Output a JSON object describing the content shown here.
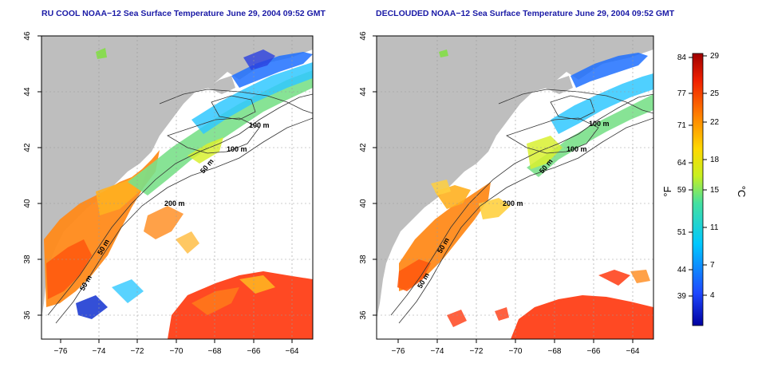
{
  "left_panel": {
    "title": "RU COOL NOAA−12 Sea Surface Temperature June 29, 2004 09:52 GMT",
    "x_ticks": [
      "−76",
      "−74",
      "−72",
      "−70",
      "−68",
      "−66",
      "−64"
    ],
    "y_ticks": [
      "46",
      "44",
      "42",
      "40",
      "38",
      "36"
    ],
    "contour_labels": [
      "100 m",
      "100 m",
      "50 m",
      "200 m",
      "50 m",
      "50 m"
    ]
  },
  "right_panel": {
    "title": "DECLOUDED NOAA−12 Sea Surface Temperature June 29, 2004 09:52 GMT",
    "x_ticks": [
      "−76",
      "−74",
      "−72",
      "−70",
      "−68",
      "−66",
      "−64"
    ],
    "y_ticks": [
      "46",
      "44",
      "42",
      "40",
      "38",
      "36"
    ],
    "contour_labels": [
      "100 m",
      "100 m",
      "50 m",
      "200 m",
      "50 m",
      "50 m"
    ]
  },
  "colorbar": {
    "f_ticks": [
      "84",
      "77",
      "71",
      "64",
      "59",
      "51",
      "44",
      "39"
    ],
    "c_ticks": [
      "29",
      "25",
      "22",
      "18",
      "15",
      "11",
      "7",
      "4"
    ],
    "f_label": "°F",
    "c_label": "°C"
  },
  "colors": {
    "land": "#bebebe",
    "cloud": "#ffffff",
    "contour": "#333333",
    "grid": "#9a9a9a",
    "title": "#1a1aa6"
  }
}
